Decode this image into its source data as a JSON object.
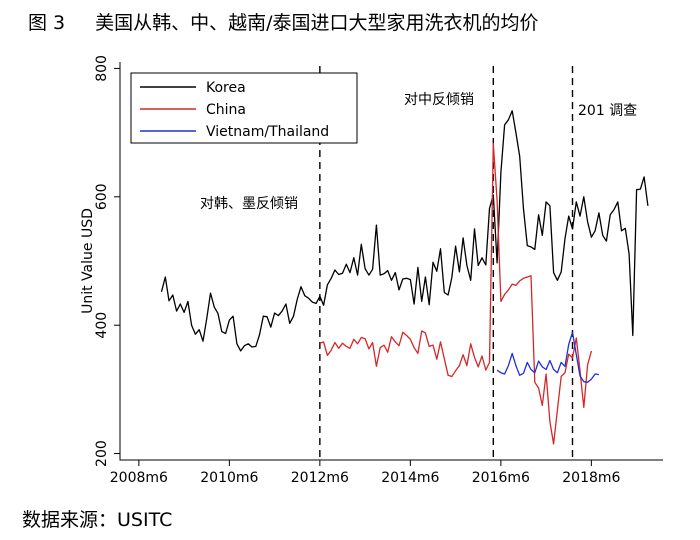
{
  "figure": {
    "label": "图 3",
    "title": "美国从韩、中、越南/泰国进口大型家用洗衣机的均价",
    "source": "数据来源：USITC"
  },
  "chart_data": {
    "type": "line",
    "ylabel": "Unit Value USD",
    "xlabel": "",
    "ylim": [
      190,
      810
    ],
    "xlim": [
      "2008m1",
      "2019m12"
    ],
    "y_ticks": [
      200,
      400,
      600,
      800
    ],
    "x_ticks": [
      "2008m6",
      "2010m6",
      "2012m6",
      "2014m6",
      "2016m6",
      "2018m6"
    ],
    "legend_position": "top-left",
    "grid": false,
    "annotations": [
      {
        "text": "对韩、墨反倾销",
        "x": "2012m6"
      },
      {
        "text": "对中反倾销",
        "x": "2016m4"
      },
      {
        "text": "201 调查",
        "x": "2018m1"
      }
    ],
    "event_lines": [
      "2012m6",
      "2016m4",
      "2018m1"
    ],
    "series": [
      {
        "name": "Korea",
        "color": "#000000",
        "start": "2008m12",
        "values": [
          452,
          475,
          438,
          447,
          422,
          433,
          420,
          437,
          400,
          386,
          393,
          375,
          410,
          450,
          428,
          418,
          390,
          387,
          408,
          414,
          371,
          360,
          368,
          371,
          366,
          367,
          385,
          414,
          413,
          397,
          419,
          415,
          422,
          433,
          403,
          414,
          440,
          460,
          446,
          442,
          436,
          434,
          445,
          431,
          463,
          473,
          486,
          479,
          481,
          495,
          482,
          505,
          478,
          526,
          488,
          478,
          487,
          556,
          478,
          480,
          485,
          470,
          482,
          455,
          472,
          473,
          471,
          433,
          490,
          437,
          475,
          432,
          498,
          484,
          519,
          451,
          447,
          474,
          523,
          483,
          536,
          493,
          470,
          550,
          493,
          505,
          494,
          582,
          603,
          497,
          638,
          712,
          720,
          734,
          700,
          663,
          581,
          524,
          522,
          518,
          572,
          540,
          592,
          586,
          482,
          470,
          483,
          535,
          570,
          550,
          592,
          570,
          600,
          561,
          537,
          547,
          575,
          540,
          531,
          572,
          580,
          592,
          547,
          551,
          511,
          384,
          611,
          612,
          631,
          586
        ]
      },
      {
        "name": "China",
        "color": "#d62728",
        "start": "2012m6",
        "values": [
          372,
          374,
          353,
          361,
          373,
          364,
          372,
          367,
          364,
          378,
          371,
          381,
          379,
          363,
          373,
          336,
          365,
          369,
          358,
          382,
          374,
          368,
          389,
          384,
          378,
          365,
          356,
          391,
          388,
          367,
          369,
          347,
          374,
          348,
          322,
          320,
          329,
          337,
          354,
          337,
          371,
          350,
          335,
          352,
          330,
          342,
          683,
          594,
          437,
          448,
          455,
          464,
          462,
          469,
          473,
          475,
          477,
          311,
          302,
          275,
          324,
          250,
          215,
          268,
          320,
          326,
          355,
          349,
          380,
          329,
          272,
          338,
          360
        ]
      },
      {
        "name": "Vietnam/Thailand",
        "color": "#1f2fd6",
        "start": "2016m5",
        "values": [
          330,
          326,
          324,
          337,
          356,
          337,
          322,
          325,
          342,
          331,
          326,
          344,
          335,
          331,
          345,
          331,
          326,
          342,
          336,
          370,
          389,
          354,
          321,
          312,
          311,
          316,
          324,
          323
        ]
      }
    ]
  }
}
